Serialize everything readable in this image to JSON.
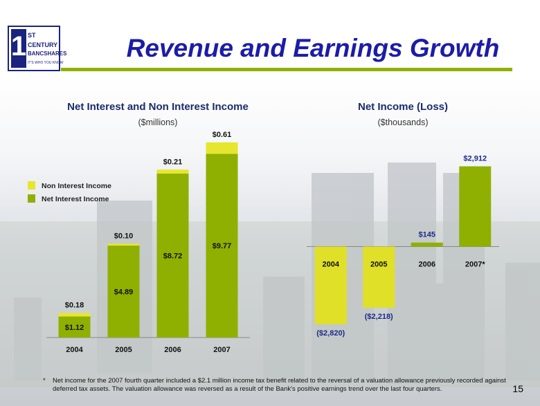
{
  "title": "Revenue and Earnings Growth",
  "logo": {
    "lines": [
      "1",
      "ST",
      "CENTURY",
      "BANCSHARES",
      "IT'S WHO YOU KNOW"
    ]
  },
  "chart_data": [
    {
      "type": "stacked-bar",
      "title": "Net Interest and Non Interest Income",
      "subtitle": "($millions)",
      "categories": [
        "2004",
        "2005",
        "2006",
        "2007"
      ],
      "series": [
        {
          "name": "Net Interest Income",
          "color": "#8fb000",
          "values": [
            1.12,
            4.89,
            8.72,
            9.77
          ],
          "value_labels": [
            "$1.12",
            "$4.89",
            "$8.72",
            "$9.77"
          ]
        },
        {
          "name": "Non Interest Income",
          "color": "#e6e62e",
          "values": [
            0.18,
            0.1,
            0.21,
            0.61
          ],
          "value_labels": [
            "$0.18",
            "$0.10",
            "$0.21",
            "$0.61"
          ]
        }
      ],
      "ylim": [
        0,
        11
      ],
      "legend": "upper left"
    },
    {
      "type": "bar",
      "title": "Net Income (Loss)",
      "subtitle": "($thousands)",
      "categories": [
        "2004",
        "2005",
        "2006",
        "2007*"
      ],
      "values": [
        -2820,
        -2218,
        145,
        2912
      ],
      "value_labels": [
        "($2,820)",
        "($2,218)",
        "$145",
        "$2,912"
      ],
      "color": "#8fb000",
      "negative_color": "#e0e028",
      "ylim": [
        -3200,
        3200
      ]
    }
  ],
  "footnote": {
    "marker": "*",
    "text": "Net income for the 2007 fourth quarter included a $2.1 million income tax benefit related to the reversal of a valuation allowance previously recorded against deferred tax assets.  The valuation allowance was reversed as a result of the Bank's positive earnings trend over the last four quarters."
  },
  "page_number": "15"
}
